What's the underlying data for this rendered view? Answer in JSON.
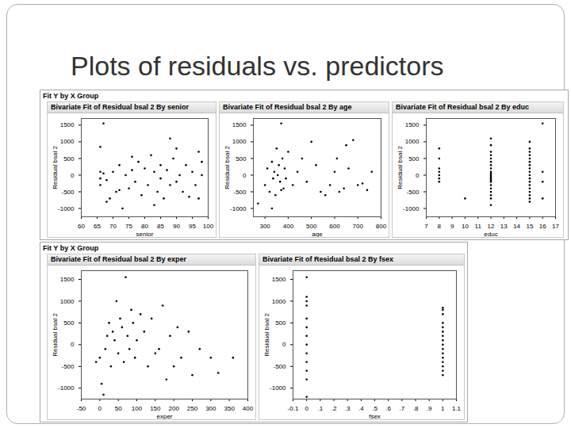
{
  "title": "Plots of residuals vs. predictors",
  "group_headers": [
    "Fit Y by X Group",
    "Fit Y by X Group"
  ],
  "chart_data": [
    {
      "type": "scatter",
      "title": "Bivariate Fit of Residual bsal 2 By senior",
      "x_label": "senior",
      "y_label": "Residual bsal 2",
      "color": "#000000",
      "x": [
        66,
        66,
        66,
        66,
        67,
        67,
        68,
        69,
        70,
        71,
        72,
        72,
        73,
        74,
        75,
        76,
        77,
        78,
        79,
        80,
        81,
        82,
        83,
        84,
        85,
        85,
        86,
        87,
        88,
        88,
        89,
        90,
        90,
        91,
        92,
        93,
        94,
        95,
        96,
        97,
        97,
        98,
        98,
        68,
        83,
        76
      ],
      "values": [
        100,
        -100,
        850,
        -300,
        1550,
        50,
        -150,
        -700,
        100,
        -500,
        300,
        -450,
        -1000,
        0,
        -400,
        150,
        -200,
        400,
        -600,
        200,
        -300,
        600,
        100,
        -500,
        300,
        -100,
        -700,
        150,
        1100,
        -300,
        500,
        -200,
        800,
        0,
        -500,
        300,
        -650,
        100,
        -300,
        700,
        -700,
        0,
        400,
        -800,
        -900,
        550
      ],
      "xlim": [
        60,
        100
      ],
      "xticks": [
        60,
        65,
        70,
        75,
        80,
        85,
        90,
        95,
        100
      ],
      "ylim": [
        -1250,
        1700
      ],
      "yticks": [
        -1000,
        -500,
        0,
        500,
        1000,
        1500
      ]
    },
    {
      "type": "scatter",
      "title": "Bivariate Fit of Residual bsal 2 By age",
      "x_label": "age",
      "y_label": "Residual bsal 2",
      "color": "#000000",
      "x": [
        270,
        300,
        310,
        320,
        330,
        335,
        340,
        345,
        350,
        355,
        360,
        365,
        370,
        375,
        380,
        385,
        390,
        400,
        420,
        440,
        460,
        480,
        500,
        520,
        540,
        560,
        580,
        600,
        610,
        620,
        640,
        650,
        660,
        680,
        700,
        720,
        740,
        760,
        330,
        370
      ],
      "values": [
        -850,
        -300,
        200,
        -500,
        400,
        -100,
        100,
        -600,
        800,
        0,
        300,
        -200,
        1550,
        500,
        -400,
        200,
        -100,
        700,
        -300,
        100,
        500,
        -200,
        1000,
        300,
        -500,
        -600,
        -300,
        100,
        500,
        -500,
        -400,
        900,
        200,
        1050,
        -300,
        -250,
        -450,
        100,
        -1000,
        -450
      ],
      "xlim": [
        250,
        800
      ],
      "xticks": [
        300,
        400,
        500,
        600,
        700,
        800
      ],
      "ylim": [
        -1250,
        1700
      ],
      "yticks": [
        -1000,
        -500,
        0,
        500,
        1000,
        1500
      ]
    },
    {
      "type": "scatter",
      "title": "Bivariate Fit of Residual bsal 2 By educ",
      "x_label": "educ",
      "y_label": "Residual bsal 2",
      "color": "#000000",
      "x": [
        8,
        8,
        8,
        8,
        8,
        8,
        8,
        10,
        12,
        12,
        12,
        12,
        12,
        12,
        12,
        12,
        12,
        12,
        12,
        12,
        12,
        12,
        12,
        12,
        12,
        12,
        12,
        12,
        12,
        15,
        15,
        15,
        15,
        15,
        15,
        15,
        15,
        15,
        15,
        15,
        15,
        15,
        15,
        15,
        15,
        15,
        15,
        16,
        16,
        16,
        16
      ],
      "values": [
        800,
        500,
        200,
        100,
        0,
        -100,
        -200,
        -700,
        1100,
        900,
        700,
        600,
        500,
        400,
        300,
        200,
        100,
        50,
        0,
        -50,
        -100,
        -150,
        -200,
        -300,
        -400,
        -500,
        -600,
        -700,
        -900,
        1000,
        800,
        700,
        600,
        500,
        400,
        300,
        200,
        100,
        0,
        -100,
        -200,
        -300,
        -400,
        -500,
        -600,
        -700,
        -800,
        1550,
        100,
        -200,
        -700
      ],
      "xlim": [
        7,
        17
      ],
      "xticks": [
        7,
        8,
        9,
        10,
        11,
        12,
        13,
        14,
        15,
        16,
        17
      ],
      "ylim": [
        -1250,
        1700
      ],
      "yticks": [
        -1000,
        -500,
        0,
        500,
        1000,
        1500
      ]
    },
    {
      "type": "scatter",
      "title": "Bivariate Fit of Residual bsal 2 By exper",
      "x_label": "exper",
      "y_label": "Residual bsal 2",
      "color": "#000000",
      "x": [
        -10,
        0,
        5,
        10,
        15,
        20,
        25,
        30,
        35,
        40,
        45,
        50,
        55,
        60,
        65,
        70,
        75,
        80,
        85,
        90,
        95,
        100,
        110,
        120,
        130,
        140,
        150,
        160,
        170,
        180,
        190,
        200,
        210,
        220,
        240,
        250,
        270,
        300,
        320,
        360
      ],
      "values": [
        -400,
        -300,
        -900,
        -1150,
        -100,
        200,
        500,
        -500,
        300,
        100,
        1000,
        -200,
        600,
        400,
        -400,
        1550,
        200,
        -100,
        800,
        500,
        -300,
        100,
        700,
        300,
        -500,
        600,
        -200,
        -100,
        900,
        -800,
        200,
        -500,
        400,
        -300,
        300,
        -700,
        -100,
        -300,
        -650,
        -300
      ],
      "xlim": [
        -50,
        400
      ],
      "xticks": [
        -50,
        0,
        50,
        100,
        150,
        200,
        250,
        300,
        350,
        400
      ],
      "ylim": [
        -1250,
        1700
      ],
      "yticks": [
        -1000,
        -500,
        0,
        500,
        1000,
        1500
      ]
    },
    {
      "type": "scatter",
      "title": "Bivariate Fit of Residual bsal 2 By fsex",
      "x_label": "fsex",
      "y_label": "Residual bsal 2",
      "color": "#000000",
      "x": [
        0,
        0,
        0,
        0,
        0,
        0,
        0,
        0,
        0,
        0,
        0,
        0,
        0,
        1,
        1,
        1,
        1,
        1,
        1,
        1,
        1,
        1,
        1,
        1,
        1,
        1,
        1,
        1,
        1
      ],
      "values": [
        1550,
        1100,
        1000,
        900,
        600,
        400,
        200,
        0,
        -200,
        -400,
        -600,
        -800,
        -1200,
        850,
        800,
        700,
        500,
        400,
        300,
        200,
        100,
        0,
        -100,
        -200,
        -300,
        -400,
        -500,
        -600,
        -700
      ],
      "xlim": [
        -0.1,
        1.1
      ],
      "xticks": [
        -0.1,
        0,
        {
          "value": 0.1,
          "label": ".1"
        },
        {
          "value": 0.2,
          "label": ".2"
        },
        {
          "value": 0.3,
          "label": ".3"
        },
        {
          "value": 0.4,
          "label": ".4"
        },
        {
          "value": 0.5,
          "label": ".5"
        },
        {
          "value": 0.6,
          "label": ".6"
        },
        {
          "value": 0.7,
          "label": ".7"
        },
        {
          "value": 0.8,
          "label": ".8"
        },
        {
          "value": 0.9,
          "label": ".9"
        },
        1,
        1.1
      ],
      "ylim": [
        -1250,
        1700
      ],
      "yticks": [
        -1000,
        -500,
        0,
        500,
        1000,
        1500
      ]
    }
  ]
}
